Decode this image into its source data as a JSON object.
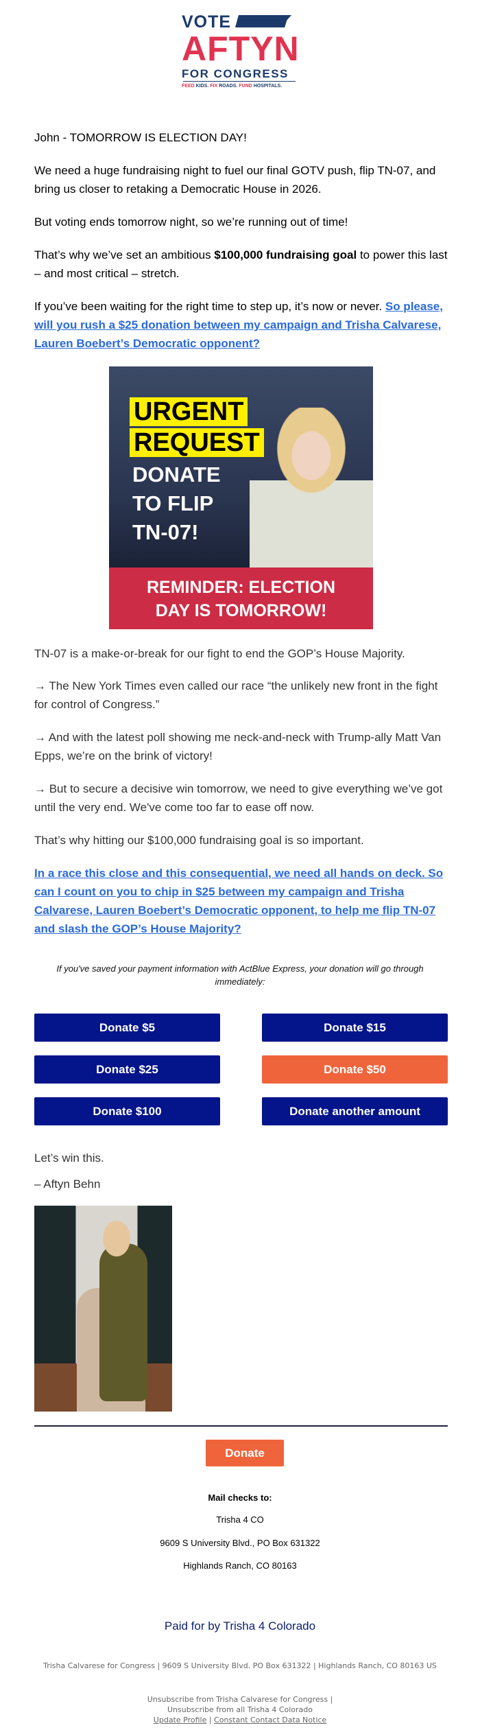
{
  "logo": {
    "vote": "VOTE",
    "name": "AFTYN",
    "for_congress": "FOR CONGRESS",
    "tagline": [
      "FEED",
      "KIDS.",
      "FIX",
      "ROADS.",
      "FUND",
      "HOSPITALS."
    ]
  },
  "body": {
    "greeting": "John - TOMORROW IS ELECTION DAY!",
    "p1": "We need a huge fundraising night to fuel our final GOTV push, flip TN-07, and bring us closer to retaking a Democratic House in 2026.",
    "p2": "But voting ends tomorrow night, so we’re running out of time!",
    "p3_pre": "That’s why we’ve set an ambitious ",
    "p3_bold": "$100,000 fundraising goal",
    "p3_post": " to power this last – and most critical – stretch.",
    "p4_pre": "If you’ve been waiting for the right time to step up, it’s now or never. ",
    "p4_link": "So please, will you rush a $25 donation between my campaign and Trisha Calvarese, Lauren Boebert’s Democratic opponent?",
    "p5": "TN-07 is a make-or-break for our fight to end the GOP’s House Majority.",
    "p6": "→ The New York Times even called our race “the unlikely new front in the fight for control of Congress.”",
    "p7": "→ And with the latest poll showing me neck-and-neck with Trump-ally Matt Van Epps, we’re on the brink of victory!",
    "p8": "→ But to secure a decisive win tomorrow, we need to give everything we’ve got until the very end. We've come too far to ease off now.",
    "p9": "That’s why hitting our $100,000 fundraising goal is so important.",
    "p10_link": "In a race this close and this consequential, we need all hands on deck. So can I count on you to chip in $25 between my campaign and Trisha Calvarese, Lauren Boebert’s Democratic opponent, to help me flip TN-07 and slash the GOP’s House Majority?",
    "note": "If you've saved your payment information with ActBlue Express, your donation will go through immediately:",
    "closing": "Let’s win this.",
    "signature": "– Aftyn Behn"
  },
  "hero": {
    "line1": "URGENT",
    "line2": "REQUEST",
    "line3": "DONATE",
    "line4": "TO FLIP",
    "line5": "TN-07!",
    "band1": "REMINDER: ELECTION",
    "band2": "DAY IS TOMORROW!"
  },
  "buttons": [
    "Donate $5",
    "Donate $15",
    "Donate $25",
    "Donate $50",
    "Donate $100",
    "Donate another amount"
  ],
  "colors": {
    "button": "#04148a",
    "highlight_button": "#f0643c",
    "link": "#2a6ad8"
  },
  "footer": {
    "donate": "Donate",
    "mail_label": "Mail checks to:",
    "mail1": "Trisha 4 CO",
    "mail2": "9609 S University Blvd., PO Box 631322",
    "mail3": "Highlands Ranch, CO 80163",
    "paid_for": "Paid for by Trisha 4 Colorado",
    "address": "Trisha Calvarese for Congress | 9609 S University Blvd. PO Box 631322 | Highlands Ranch, CO 80163 US",
    "unsub1": "Unsubscribe from Trisha Calvarese for Congress",
    "sep": " | ",
    "unsub2": "Unsubscribe from all Trisha 4 Colorado",
    "update": "Update Profile",
    "notice": "Constant Contact Data Notice"
  }
}
